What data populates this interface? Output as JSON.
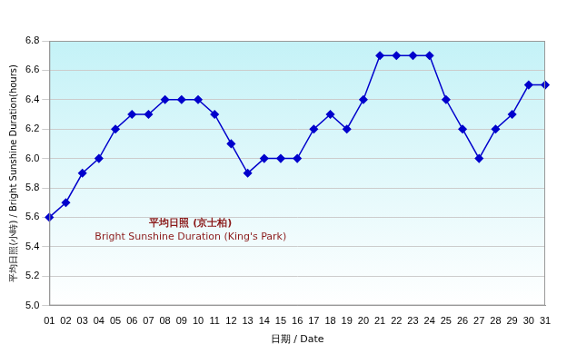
{
  "chart_data": {
    "type": "line",
    "x_label": "日期 / Date",
    "y_label": "平均日照(小時) / Bright Sunshine Duration(hours)",
    "annotations": [
      "平均日照 (京士柏)",
      "Bright Sunshine Duration (King's Park)"
    ],
    "categories": [
      "01",
      "02",
      "03",
      "04",
      "05",
      "06",
      "07",
      "08",
      "09",
      "10",
      "11",
      "12",
      "13",
      "14",
      "15",
      "16",
      "17",
      "18",
      "19",
      "20",
      "21",
      "22",
      "23",
      "24",
      "25",
      "26",
      "27",
      "28",
      "29",
      "30",
      "31"
    ],
    "values": [
      5.6,
      5.7,
      5.9,
      6.0,
      6.2,
      6.3,
      6.3,
      6.4,
      6.4,
      6.4,
      6.3,
      6.1,
      5.9,
      6.0,
      6.0,
      6.0,
      6.2,
      6.3,
      6.2,
      6.4,
      6.7,
      6.7,
      6.7,
      6.7,
      6.4,
      6.2,
      6.0,
      6.2,
      6.3,
      6.5,
      6.5
    ],
    "color": "#0000cc",
    "marker": "diamond",
    "ylim": [
      5.0,
      6.8
    ],
    "yticks": [
      {
        "value": 5,
        "label": "5.0"
      },
      5.2,
      5.4,
      5.6,
      5.8,
      {
        "value": 6,
        "label": "6.0"
      },
      6.2,
      6.4,
      6.6,
      6.8
    ],
    "grid": true
  }
}
